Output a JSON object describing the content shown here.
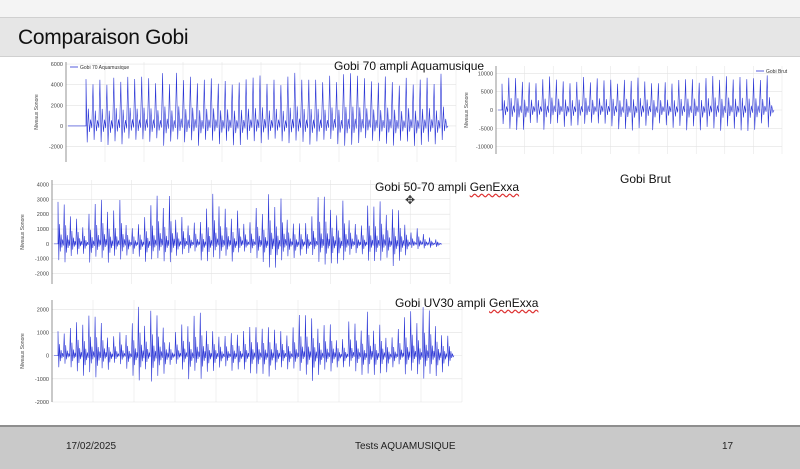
{
  "slide": {
    "title": "Comparaison Gobi",
    "footer": {
      "date": "17/02/2025",
      "center": "Tests AQUAMUSIQUE",
      "page": "17"
    }
  },
  "captions": {
    "c1": "Gobi 70 ampli Aquamusique",
    "c2_main": "Gobi 50-70 ampli ",
    "c2_brand": "GenExxa",
    "c3": "Gobi Brut",
    "c4_main": "Gobi UV30 ampli ",
    "c4_brand": "GenExxa"
  },
  "colors": {
    "wave": "#2a35d6",
    "grid": "#e2e2e2",
    "axis": "#555555"
  },
  "chart_data": [
    {
      "type": "line",
      "legend": "Gobi 70 Aquamusique",
      "ylabel": "Niveaux Sonore",
      "yticks": [
        -2000,
        0,
        2000,
        4000,
        6000
      ],
      "ylim": [
        -3500,
        6200
      ],
      "shape": "regular-pulses",
      "pulses": 52,
      "amp_pos": 5200,
      "amp_neg": -3200
    },
    {
      "type": "line",
      "legend": "Gobi Brut",
      "ylabel": "Niveaux Sonore",
      "yticks": [
        -10000,
        -5000,
        0,
        5000,
        10000
      ],
      "ylim": [
        -12000,
        12000
      ],
      "shape": "regular-pulses",
      "pulses": 40,
      "amp_pos": 9500,
      "amp_neg": -9500
    },
    {
      "type": "line",
      "ylabel": "Niveaux Sonore",
      "yticks": [
        -2000,
        -1000,
        0,
        1000,
        2000,
        3000,
        4000
      ],
      "ylim": [
        -2700,
        4300
      ],
      "shape": "irregular-bursts",
      "pulses": 62,
      "amp_pos": 3600,
      "amp_neg": -2400
    },
    {
      "type": "line",
      "ylabel": "Niveaux Sonore",
      "yticks": [
        -2000,
        -1000,
        0,
        1000,
        2000
      ],
      "ylim": [
        -2000,
        2400
      ],
      "shape": "irregular-bursts",
      "pulses": 64,
      "amp_pos": 2200,
      "amp_neg": -1700
    }
  ]
}
